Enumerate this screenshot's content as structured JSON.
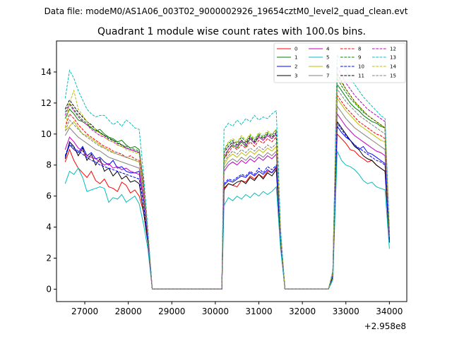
{
  "chart_data": {
    "type": "line",
    "suptitle": "Data file: modeM0/AS1A06_003T02_9000002926_19654cztM0_level2_quad_clean.evt",
    "title": "Quadrant 1 module wise count rates with 100.0s bins.",
    "xlabel": "",
    "ylabel": "",
    "x_offset_label": "+2.958e8",
    "xlim": [
      26350,
      34400
    ],
    "ylim": [
      -0.8,
      16.0
    ],
    "x_ticks": [
      27000,
      28000,
      29000,
      30000,
      31000,
      32000,
      33000,
      34000
    ],
    "x_tick_labels": [
      "27000",
      "28000",
      "29000",
      "30000",
      "31000",
      "32000",
      "33000",
      "34000"
    ],
    "y_ticks": [
      0,
      2,
      4,
      6,
      8,
      10,
      12,
      14
    ],
    "y_tick_labels": [
      "0",
      "2",
      "4",
      "6",
      "8",
      "10",
      "12",
      "14"
    ],
    "legend_location": "upper right",
    "segments": [
      {
        "start": 26550,
        "length": 20
      },
      {
        "start": 30200,
        "length": 14
      },
      {
        "start": 32700,
        "length": 14
      }
    ],
    "series": [
      {
        "name": "0",
        "color": "#ff0000",
        "dash": "solid",
        "segments": [
          [
            8.2,
            9.0,
            8.3,
            7.8,
            7.5,
            7.2,
            7.6,
            7.0,
            6.8,
            7.1,
            6.6,
            6.5,
            6.3,
            6.9,
            6.7,
            6.2,
            6.4,
            6.0,
            5.0,
            3.0
          ],
          [
            6.4,
            6.8,
            6.7,
            6.6,
            7.0,
            6.9,
            7.3,
            7.1,
            7.4,
            7.2,
            7.6,
            7.5,
            7.8,
            3.0
          ],
          [
            0.8,
            10.0,
            9.7,
            9.4,
            9.0,
            8.9,
            8.6,
            8.4,
            8.2,
            8.3,
            8.0,
            7.8,
            7.6,
            3.0
          ]
        ]
      },
      {
        "name": "1",
        "color": "#008000",
        "dash": "solid",
        "segments": [
          [
            11.0,
            11.6,
            11.3,
            10.9,
            10.8,
            10.6,
            10.4,
            10.2,
            10.3,
            10.0,
            9.8,
            9.7,
            9.5,
            9.6,
            9.3,
            9.1,
            9.2,
            9.0,
            6.8,
            3.5
          ],
          [
            8.4,
            9.0,
            9.3,
            9.1,
            9.5,
            9.2,
            9.7,
            9.4,
            9.8,
            9.6,
            9.9,
            9.7,
            10.0,
            3.5
          ],
          [
            1.0,
            13.2,
            12.8,
            12.4,
            12.0,
            11.7,
            11.5,
            11.2,
            11.0,
            10.8,
            10.7,
            10.5,
            10.4,
            3.5
          ]
        ]
      },
      {
        "name": "2",
        "color": "#0000ff",
        "dash": "solid",
        "segments": [
          [
            8.5,
            9.3,
            9.0,
            8.8,
            9.2,
            8.6,
            8.8,
            8.4,
            8.5,
            8.2,
            8.0,
            8.3,
            7.8,
            7.9,
            7.6,
            7.5,
            7.5,
            7.6,
            5.8,
            3.2
          ],
          [
            6.7,
            7.0,
            6.9,
            7.1,
            7.3,
            7.2,
            7.5,
            7.3,
            7.6,
            7.4,
            7.7,
            7.5,
            7.9,
            3.2
          ],
          [
            0.9,
            10.5,
            10.1,
            9.8,
            9.6,
            9.3,
            9.0,
            9.2,
            8.8,
            8.7,
            8.5,
            8.3,
            8.1,
            3.2
          ]
        ]
      },
      {
        "name": "3",
        "color": "#000000",
        "dash": "solid",
        "segments": [
          [
            8.4,
            9.5,
            9.2,
            8.6,
            9.1,
            8.3,
            8.7,
            8.0,
            8.4,
            7.6,
            7.8,
            7.3,
            7.6,
            7.1,
            7.3,
            6.9,
            7.0,
            6.8,
            5.0,
            3.0
          ],
          [
            6.5,
            6.8,
            6.7,
            6.9,
            7.0,
            6.8,
            7.2,
            7.0,
            7.4,
            7.1,
            7.5,
            7.3,
            7.7,
            3.0
          ],
          [
            0.8,
            10.8,
            10.4,
            10.0,
            9.6,
            9.2,
            9.0,
            8.6,
            8.4,
            8.3,
            8.0,
            7.8,
            7.6,
            3.0
          ]
        ]
      },
      {
        "name": "4",
        "color": "#bf00bf",
        "dash": "solid",
        "segments": [
          [
            9.0,
            9.8,
            9.5,
            9.1,
            8.9,
            8.6,
            8.5,
            8.4,
            8.2,
            8.0,
            8.1,
            7.8,
            7.9,
            7.7,
            7.8,
            7.6,
            7.5,
            7.4,
            5.8,
            3.2
          ],
          [
            7.6,
            8.0,
            8.2,
            8.0,
            8.3,
            8.1,
            8.4,
            8.2,
            8.5,
            8.3,
            8.6,
            8.4,
            8.7,
            3.2
          ],
          [
            1.0,
            11.3,
            10.9,
            10.5,
            10.2,
            9.9,
            9.7,
            9.5,
            9.3,
            9.1,
            8.9,
            8.8,
            8.6,
            3.2
          ]
        ]
      },
      {
        "name": "5",
        "color": "#00bfbf",
        "dash": "solid",
        "segments": [
          [
            6.8,
            7.6,
            7.4,
            7.8,
            7.2,
            6.3,
            6.4,
            6.5,
            6.6,
            6.5,
            5.6,
            5.9,
            5.8,
            6.1,
            5.6,
            5.8,
            6.0,
            5.5,
            4.2,
            2.6
          ],
          [
            5.4,
            5.9,
            5.7,
            6.0,
            5.8,
            6.1,
            5.9,
            6.2,
            6.0,
            6.3,
            6.1,
            6.3,
            6.6,
            2.6
          ],
          [
            0.6,
            8.9,
            8.3,
            8.0,
            7.9,
            7.7,
            7.4,
            7.0,
            6.8,
            6.9,
            6.6,
            6.5,
            6.4,
            2.6
          ]
        ]
      },
      {
        "name": "6",
        "color": "#bfbf00",
        "dash": "solid",
        "segments": [
          [
            10.2,
            10.5,
            10.8,
            10.4,
            10.0,
            9.9,
            9.7,
            9.5,
            9.3,
            9.1,
            9.0,
            8.8,
            8.7,
            8.6,
            8.5,
            8.4,
            8.3,
            8.2,
            6.4,
            3.4
          ],
          [
            8.0,
            8.5,
            8.7,
            8.5,
            8.8,
            8.6,
            8.9,
            8.7,
            9.0,
            8.8,
            9.1,
            8.9,
            9.2,
            3.4
          ],
          [
            1.0,
            12.3,
            11.9,
            11.5,
            11.2,
            10.9,
            10.6,
            10.4,
            10.2,
            10.0,
            9.8,
            9.6,
            9.5,
            3.4
          ]
        ]
      },
      {
        "name": "7",
        "color": "#808080",
        "dash": "solid",
        "segments": [
          [
            9.9,
            10.4,
            10.1,
            9.8,
            9.6,
            9.4,
            9.2,
            9.0,
            8.9,
            8.7,
            8.5,
            8.4,
            8.3,
            8.2,
            8.1,
            8.0,
            7.9,
            7.8,
            6.0,
            3.3
          ],
          [
            7.8,
            8.2,
            8.4,
            8.2,
            8.5,
            8.3,
            8.6,
            8.4,
            8.7,
            8.5,
            8.8,
            8.6,
            8.9,
            3.3
          ],
          [
            1.0,
            11.8,
            11.4,
            11.0,
            10.7,
            10.4,
            10.2,
            10.0,
            9.8,
            9.6,
            9.4,
            9.2,
            9.0,
            3.3
          ]
        ]
      },
      {
        "name": "8",
        "color": "#ff0000",
        "dash": "dashed",
        "segments": [
          [
            10.4,
            11.3,
            11.0,
            10.6,
            10.3,
            10.0,
            9.8,
            9.6,
            9.4,
            9.2,
            9.1,
            8.9,
            8.8,
            8.7,
            8.5,
            8.6,
            8.4,
            8.3,
            6.4,
            3.3
          ],
          [
            8.4,
            8.8,
            9.2,
            9.0,
            9.3,
            9.1,
            9.5,
            9.2,
            9.6,
            9.4,
            9.7,
            9.5,
            9.8,
            3.3
          ],
          [
            1.0,
            12.5,
            12.1,
            11.7,
            11.4,
            11.1,
            10.8,
            10.6,
            10.4,
            10.2,
            10.0,
            9.9,
            9.7,
            3.3
          ]
        ]
      },
      {
        "name": "9",
        "color": "#008000",
        "dash": "dashed",
        "segments": [
          [
            11.4,
            12.0,
            11.6,
            11.2,
            10.9,
            10.7,
            10.4,
            10.2,
            10.1,
            9.9,
            9.8,
            9.6,
            9.5,
            9.3,
            9.2,
            9.1,
            9.0,
            8.9,
            6.9,
            3.5
          ],
          [
            8.9,
            9.4,
            9.6,
            9.4,
            9.8,
            9.5,
            9.9,
            9.6,
            10.0,
            9.8,
            10.1,
            9.9,
            10.3,
            3.5
          ],
          [
            1.1,
            13.6,
            13.1,
            12.7,
            12.3,
            12.0,
            11.7,
            11.4,
            11.2,
            11.0,
            10.8,
            10.6,
            10.4,
            3.5
          ]
        ]
      },
      {
        "name": "10",
        "color": "#0000ff",
        "dash": "dashed",
        "segments": [
          [
            8.6,
            9.4,
            9.1,
            8.9,
            8.7,
            8.5,
            8.3,
            8.2,
            8.0,
            7.9,
            7.8,
            7.7,
            7.6,
            7.5,
            7.4,
            7.3,
            7.2,
            7.1,
            5.5,
            3.1
          ],
          [
            6.8,
            7.1,
            7.0,
            7.2,
            7.4,
            7.3,
            7.6,
            7.4,
            7.8,
            7.5,
            7.9,
            7.7,
            8.0,
            3.1
          ],
          [
            0.9,
            10.7,
            10.3,
            9.9,
            9.6,
            9.3,
            9.1,
            8.9,
            8.7,
            8.5,
            8.3,
            8.2,
            8.0,
            3.1
          ]
        ]
      },
      {
        "name": "11",
        "color": "#000000",
        "dash": "dashed",
        "segments": [
          [
            11.6,
            12.2,
            11.8,
            11.4,
            11.1,
            10.8,
            10.6,
            10.3,
            10.1,
            9.9,
            9.7,
            9.6,
            9.4,
            9.3,
            9.1,
            9.0,
            8.9,
            8.8,
            6.9,
            3.5
          ],
          [
            8.8,
            9.2,
            9.5,
            9.3,
            9.6,
            9.4,
            9.8,
            9.5,
            9.9,
            9.7,
            10.0,
            9.8,
            10.1,
            3.5
          ],
          [
            1.1,
            13.9,
            13.4,
            12.9,
            12.5,
            12.1,
            11.8,
            11.5,
            11.2,
            11.0,
            10.8,
            10.6,
            10.4,
            3.5
          ]
        ]
      },
      {
        "name": "12",
        "color": "#bf00bf",
        "dash": "dashed",
        "segments": [
          [
            11.2,
            11.9,
            11.5,
            11.1,
            10.8,
            10.6,
            10.3,
            10.1,
            9.9,
            9.8,
            9.6,
            9.5,
            9.3,
            9.2,
            9.1,
            9.0,
            8.9,
            8.8,
            6.8,
            3.5
          ],
          [
            8.6,
            9.0,
            9.4,
            9.2,
            9.6,
            9.3,
            9.7,
            9.4,
            9.8,
            9.6,
            9.9,
            9.7,
            10.0,
            3.5
          ],
          [
            1.1,
            14.3,
            13.8,
            13.3,
            12.9,
            12.5,
            12.2,
            11.9,
            11.6,
            11.4,
            11.2,
            11.0,
            10.8,
            3.5
          ]
        ]
      },
      {
        "name": "13",
        "color": "#00bfbf",
        "dash": "dashed",
        "segments": [
          [
            12.3,
            14.1,
            13.6,
            12.8,
            12.2,
            11.6,
            11.3,
            11.1,
            11.2,
            11.2,
            10.9,
            10.6,
            10.8,
            10.5,
            10.9,
            10.7,
            10.4,
            10.3,
            7.4,
            3.9
          ],
          [
            10.3,
            10.7,
            10.5,
            10.9,
            10.6,
            11.0,
            10.8,
            11.2,
            10.9,
            11.1,
            11.0,
            11.3,
            11.5,
            3.9
          ],
          [
            1.2,
            15.1,
            14.6,
            14.1,
            13.6,
            13.2,
            12.8,
            12.4,
            12.1,
            11.8,
            11.5,
            11.2,
            11.0,
            3.9
          ]
        ]
      },
      {
        "name": "14",
        "color": "#bfbf00",
        "dash": "dashed",
        "segments": [
          [
            10.4,
            12.0,
            12.8,
            11.6,
            11.2,
            10.8,
            10.5,
            10.3,
            10.0,
            9.8,
            9.6,
            9.5,
            9.3,
            9.2,
            9.0,
            8.9,
            8.8,
            8.7,
            6.7,
            3.5
          ],
          [
            9.0,
            9.5,
            9.7,
            9.5,
            9.9,
            9.6,
            10.0,
            9.7,
            10.1,
            9.9,
            10.2,
            10.0,
            10.3,
            3.5
          ],
          [
            1.1,
            13.8,
            13.3,
            12.9,
            12.5,
            12.1,
            11.8,
            11.5,
            11.2,
            11.0,
            10.8,
            10.6,
            10.4,
            3.5
          ]
        ]
      },
      {
        "name": "15",
        "color": "#808080",
        "dash": "dashed",
        "segments": [
          [
            10.2,
            10.9,
            10.6,
            10.3,
            10.0,
            9.8,
            9.6,
            9.4,
            9.2,
            9.1,
            8.9,
            8.8,
            8.7,
            8.6,
            8.5,
            8.4,
            8.3,
            8.2,
            6.4,
            3.4
          ],
          [
            8.2,
            8.6,
            8.9,
            8.7,
            9.0,
            8.8,
            9.1,
            8.9,
            9.2,
            9.0,
            9.3,
            9.1,
            9.4,
            3.4
          ],
          [
            1.0,
            12.9,
            12.5,
            12.1,
            11.8,
            11.5,
            11.2,
            11.0,
            10.8,
            10.6,
            10.4,
            10.2,
            10.0,
            3.4
          ]
        ]
      }
    ]
  }
}
